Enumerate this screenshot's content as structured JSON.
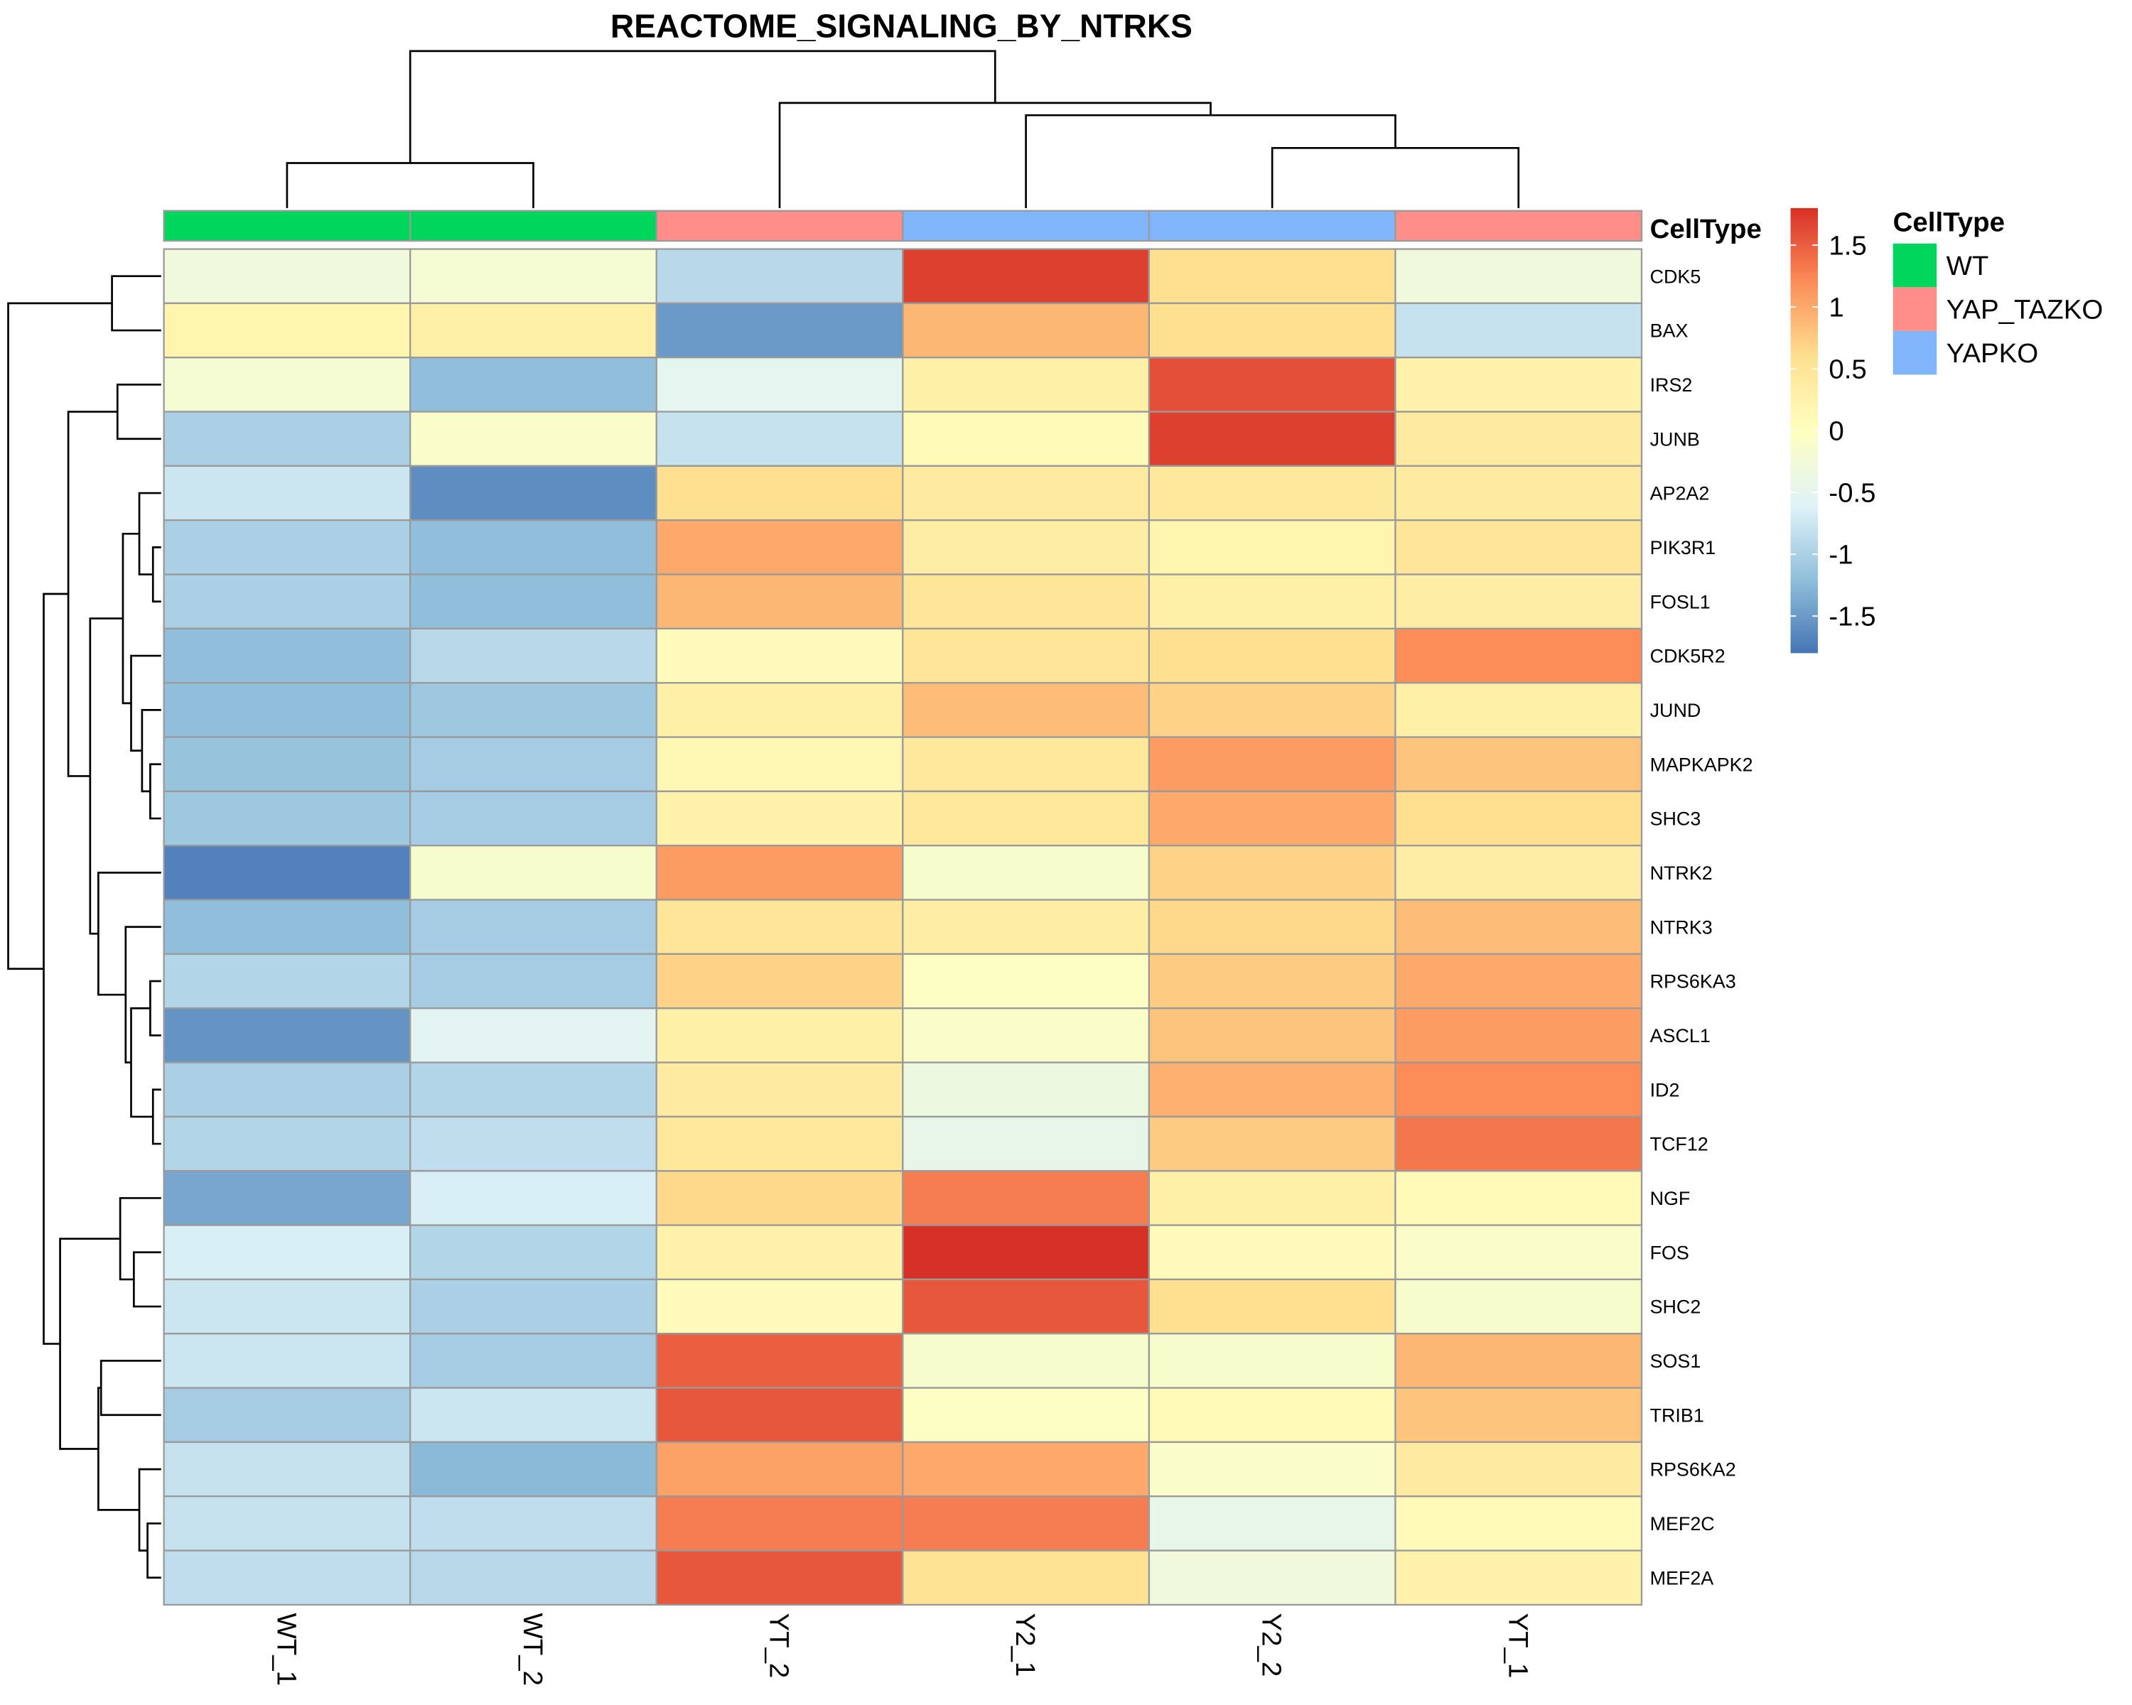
{
  "chart_data": {
    "type": "heatmap",
    "title": "REACTOME_SIGNALING_BY_NTRKS",
    "columns": [
      "WT_1",
      "WT_2",
      "YT_2",
      "Y2_1",
      "Y2_2",
      "YT_1"
    ],
    "rows": [
      "CDK5",
      "BAX",
      "IRS2",
      "JUNB",
      "AP2A2",
      "PIK3R1",
      "FOSL1",
      "CDK5R2",
      "JUND",
      "MAPKAPK2",
      "SHC3",
      "NTRK2",
      "NTRK3",
      "RPS6KA3",
      "ASCL1",
      "ID2",
      "TCF12",
      "NGF",
      "FOS",
      "SHC2",
      "SOS1",
      "TRIB1",
      "RPS6KA2",
      "MEF2C",
      "MEF2A"
    ],
    "values": [
      [
        -0.3,
        -0.2,
        -0.9,
        1.7,
        0.6,
        -0.3
      ],
      [
        0.2,
        0.3,
        -1.5,
        0.9,
        0.6,
        -0.8
      ],
      [
        -0.2,
        -1.2,
        -0.5,
        0.3,
        1.6,
        0.25
      ],
      [
        -1.0,
        -0.1,
        -0.8,
        0.1,
        1.7,
        0.4
      ],
      [
        -0.75,
        -1.6,
        0.6,
        0.4,
        0.45,
        0.4
      ],
      [
        -1.0,
        -1.2,
        1.0,
        0.35,
        0.2,
        0.5
      ],
      [
        -1.0,
        -1.2,
        0.9,
        0.5,
        0.3,
        0.35
      ],
      [
        -1.2,
        -0.9,
        0.05,
        0.5,
        0.6,
        1.2
      ],
      [
        -1.2,
        -1.1,
        0.3,
        0.85,
        0.7,
        0.3
      ],
      [
        -1.15,
        -1.05,
        0.15,
        0.45,
        1.1,
        0.8
      ],
      [
        -1.1,
        -1.05,
        0.25,
        0.45,
        1.0,
        0.6
      ],
      [
        -1.7,
        -0.15,
        1.1,
        -0.15,
        0.7,
        0.35
      ],
      [
        -1.2,
        -1.05,
        0.5,
        0.35,
        0.65,
        0.85
      ],
      [
        -0.95,
        -1.05,
        0.7,
        -0.05,
        0.75,
        1.0
      ],
      [
        -1.55,
        -0.55,
        0.3,
        -0.1,
        0.8,
        1.1
      ],
      [
        -1.0,
        -0.95,
        0.4,
        -0.35,
        0.95,
        1.2
      ],
      [
        -0.95,
        -0.85,
        0.45,
        -0.45,
        0.75,
        1.35
      ],
      [
        -1.4,
        -0.65,
        0.65,
        1.3,
        0.3,
        0.1
      ],
      [
        -0.65,
        -0.95,
        0.25,
        1.8,
        0.05,
        -0.1
      ],
      [
        -0.75,
        -1.0,
        0.05,
        1.55,
        0.6,
        -0.15
      ],
      [
        -0.75,
        -1.05,
        1.5,
        -0.15,
        -0.15,
        0.9
      ],
      [
        -1.05,
        -0.75,
        1.55,
        -0.05,
        0.1,
        0.8
      ],
      [
        -0.8,
        -1.25,
        1.05,
        1.0,
        -0.1,
        0.4
      ],
      [
        -0.8,
        -0.85,
        1.3,
        1.3,
        -0.45,
        0.1
      ],
      [
        -0.85,
        -0.9,
        1.55,
        0.55,
        -0.3,
        0.25
      ]
    ],
    "annotation": {
      "title": "CellType",
      "column_groups": [
        "WT",
        "WT",
        "YAP_TAZKO",
        "YAPKO",
        "YAPKO",
        "YAP_TAZKO"
      ],
      "legend": [
        {
          "label": "WT",
          "color": "#00D65C"
        },
        {
          "label": "YAP_TAZKO",
          "color": "#FF8E8A"
        },
        {
          "label": "YAPKO",
          "color": "#81B6FC"
        }
      ]
    },
    "colorbar": {
      "ticks": [
        1.5,
        1,
        0.5,
        0,
        -0.5,
        -1,
        -1.5
      ],
      "tick_labels": [
        "1.5",
        "1",
        "0.5",
        "0",
        "-0.5",
        "-1",
        "-1.5"
      ],
      "range": [
        -1.8,
        1.8
      ],
      "palette": [
        "#4575B4",
        "#91BFDB",
        "#E0F3F8",
        "#FFFFBF",
        "#FEE090",
        "#FC8D59",
        "#D73027"
      ]
    },
    "dendrograms": {
      "columns": "clustered (WT_1, WT_2) | (YT_2, (Y2_1, (Y2_2, YT_1)))",
      "rows": "clustered"
    },
    "grid": true,
    "legend_position": "right"
  }
}
